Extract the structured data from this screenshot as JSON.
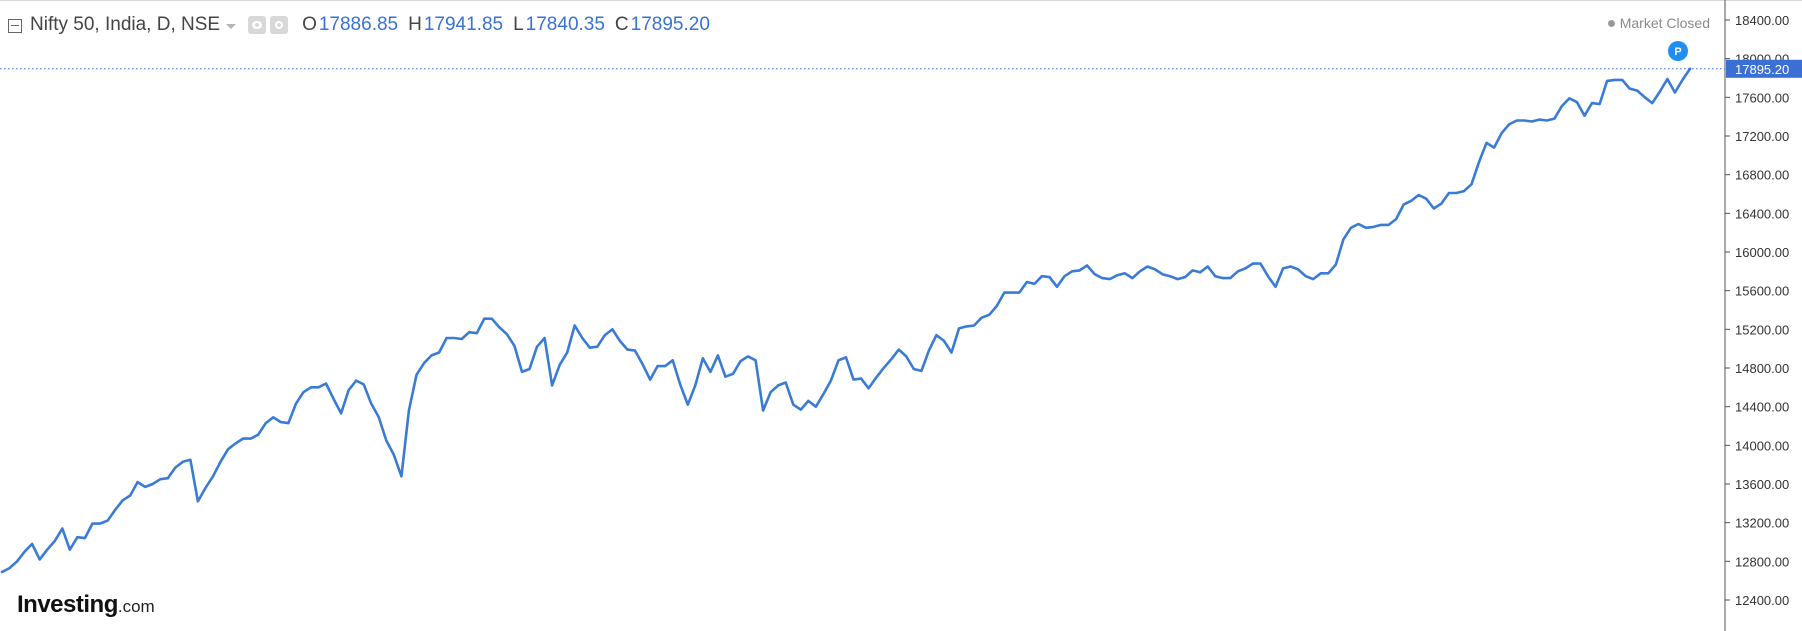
{
  "legend": {
    "title": "Nifty 50, India, D, NSE",
    "open_label": "O",
    "open_value": "17886.85",
    "high_label": "H",
    "high_value": "17941.85",
    "low_label": "L",
    "low_value": "17840.35",
    "close_label": "C",
    "close_value": "17895.20",
    "icons": [
      "collapse-icon",
      "caret-down-icon",
      "eye-icon",
      "gear-icon"
    ]
  },
  "market_status": "Market Closed",
  "logo": {
    "main": "Investing",
    "suffix": ".com"
  },
  "colors": {
    "line": "#3a7bd5",
    "value_text": "#3772d6",
    "price_tag": "#3b6fd4",
    "badge": "#1e8ff0",
    "axis": "#444444"
  },
  "chart_data": {
    "type": "line",
    "title": "Nifty 50, India, D, NSE",
    "xlabel": "",
    "ylabel": "",
    "ylim": [
      12400,
      18400
    ],
    "y_ticks": [
      "18400.00",
      "18000.00",
      "17600.00",
      "17200.00",
      "16800.00",
      "16400.00",
      "16000.00",
      "15600.00",
      "15200.00",
      "14800.00",
      "14400.00",
      "14000.00",
      "13600.00",
      "13200.00",
      "12800.00",
      "12400.00"
    ],
    "y_tick_values": [
      18400,
      18000,
      17600,
      17200,
      16800,
      16400,
      16000,
      15600,
      15200,
      14800,
      14400,
      14000,
      13600,
      13200,
      12800,
      12400
    ],
    "last_price": 17895.2,
    "last_price_label": "17895.20",
    "badge_label": "P",
    "grid": false,
    "legend_position": "top-left",
    "series": [
      {
        "values": [
          12690,
          12730,
          12800,
          12900,
          12980,
          12820,
          12920,
          13010,
          13140,
          12920,
          13050,
          13040,
          13190,
          13190,
          13220,
          13330,
          13430,
          13480,
          13620,
          13570,
          13600,
          13650,
          13660,
          13770,
          13830,
          13850,
          13420,
          13560,
          13680,
          13830,
          13960,
          14020,
          14070,
          14070,
          14110,
          14230,
          14290,
          14240,
          14230,
          14430,
          14550,
          14600,
          14600,
          14640,
          14480,
          14330,
          14570,
          14670,
          14630,
          14430,
          14290,
          14050,
          13900,
          13680,
          14360,
          14730,
          14850,
          14930,
          14960,
          15110,
          15110,
          15100,
          15170,
          15160,
          15310,
          15310,
          15220,
          15150,
          15030,
          14760,
          14790,
          15020,
          15110,
          14620,
          14830,
          14960,
          15240,
          15110,
          15010,
          15020,
          15140,
          15200,
          15080,
          14990,
          14980,
          14840,
          14680,
          14820,
          14820,
          14880,
          14630,
          14420,
          14620,
          14900,
          14760,
          14930,
          14710,
          14740,
          14870,
          14920,
          14880,
          14360,
          14550,
          14620,
          14650,
          14420,
          14370,
          14460,
          14400,
          14530,
          14670,
          14880,
          14910,
          14680,
          14690,
          14590,
          14700,
          14800,
          14890,
          14990,
          14920,
          14790,
          14770,
          14980,
          15140,
          15080,
          14960,
          15210,
          15230,
          15240,
          15320,
          15350,
          15440,
          15580,
          15580,
          15580,
          15690,
          15670,
          15750,
          15740,
          15640,
          15750,
          15800,
          15810,
          15860,
          15770,
          15730,
          15720,
          15760,
          15780,
          15730,
          15800,
          15850,
          15820,
          15770,
          15750,
          15720,
          15740,
          15810,
          15790,
          15850,
          15750,
          15730,
          15730,
          15800,
          15830,
          15880,
          15880,
          15750,
          15640,
          15830,
          15850,
          15820,
          15750,
          15720,
          15780,
          15780,
          15870,
          16130,
          16250,
          16290,
          16250,
          16260,
          16280,
          16280,
          16340,
          16490,
          16530,
          16590,
          16550,
          16450,
          16500,
          16610,
          16610,
          16630,
          16700,
          16930,
          17130,
          17080,
          17230,
          17320,
          17360,
          17360,
          17350,
          17370,
          17360,
          17380,
          17510,
          17590,
          17550,
          17410,
          17540,
          17530,
          17770,
          17780,
          17780,
          17690,
          17670,
          17600,
          17540,
          17660,
          17790,
          17650,
          17780,
          17895
        ]
      }
    ]
  }
}
